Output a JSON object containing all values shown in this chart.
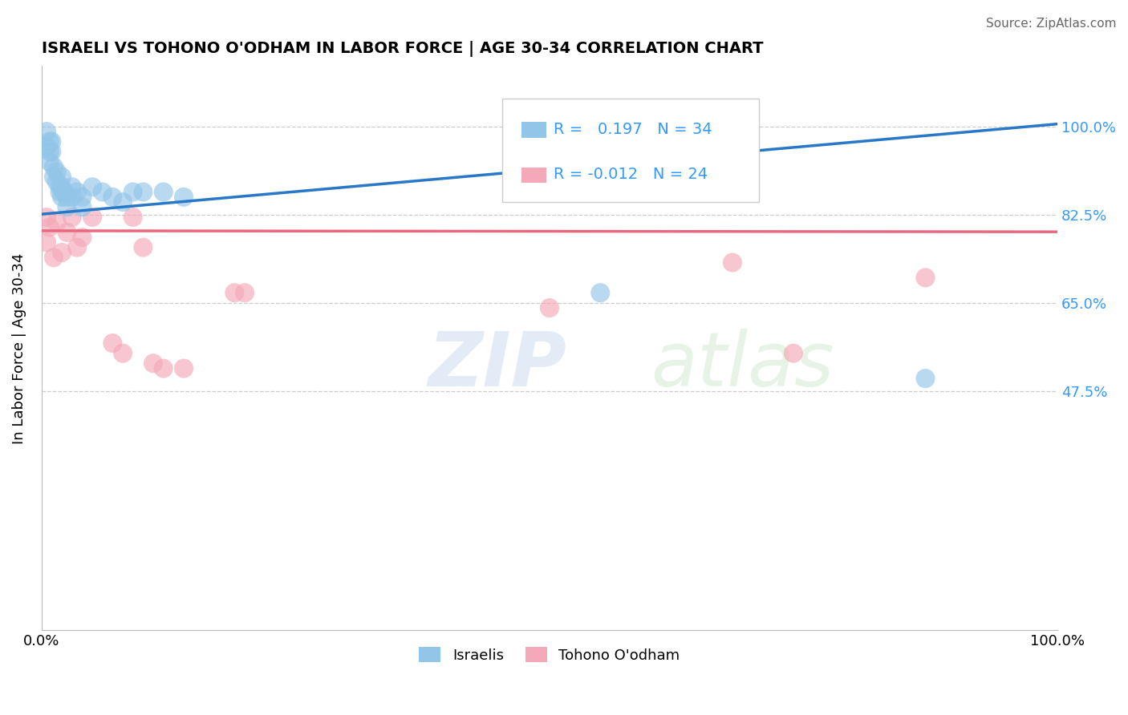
{
  "title": "ISRAELI VS TOHONO O'ODHAM IN LABOR FORCE | AGE 30-34 CORRELATION CHART",
  "source": "Source: ZipAtlas.com",
  "ylabel": "In Labor Force | Age 30-34",
  "xlim": [
    0.0,
    1.0
  ],
  "ylim": [
    0.0,
    1.12
  ],
  "yticks": [
    0.475,
    0.65,
    0.825,
    1.0
  ],
  "ytick_labels": [
    "47.5%",
    "65.0%",
    "82.5%",
    "100.0%"
  ],
  "xtick_labels_left": "0.0%",
  "xtick_labels_right": "100.0%",
  "watermark_zip": "ZIP",
  "watermark_atlas": "atlas",
  "israeli_R": 0.197,
  "israeli_N": 34,
  "tohono_R": -0.012,
  "tohono_N": 24,
  "israeli_color": "#92C5E8",
  "tohono_color": "#F4A8B8",
  "trend_israeli_color": "#2878C8",
  "trend_tohono_color": "#E86880",
  "grid_color": "#CCCCCC",
  "background_color": "#FFFFFF",
  "israeli_points_x": [
    0.005,
    0.005,
    0.008,
    0.008,
    0.008,
    0.01,
    0.01,
    0.012,
    0.012,
    0.015,
    0.015,
    0.018,
    0.018,
    0.02,
    0.02,
    0.02,
    0.022,
    0.025,
    0.025,
    0.03,
    0.03,
    0.035,
    0.04,
    0.04,
    0.05,
    0.06,
    0.07,
    0.08,
    0.09,
    0.1,
    0.12,
    0.14,
    0.55,
    0.87
  ],
  "israeli_points_y": [
    0.99,
    0.96,
    0.97,
    0.95,
    0.93,
    0.97,
    0.95,
    0.92,
    0.9,
    0.91,
    0.89,
    0.88,
    0.87,
    0.9,
    0.88,
    0.86,
    0.87,
    0.86,
    0.84,
    0.88,
    0.86,
    0.87,
    0.86,
    0.84,
    0.88,
    0.87,
    0.86,
    0.85,
    0.87,
    0.87,
    0.87,
    0.86,
    0.67,
    0.5
  ],
  "tohono_points_x": [
    0.005,
    0.005,
    0.008,
    0.012,
    0.015,
    0.02,
    0.025,
    0.03,
    0.035,
    0.04,
    0.05,
    0.07,
    0.08,
    0.09,
    0.1,
    0.11,
    0.12,
    0.14,
    0.19,
    0.2,
    0.5,
    0.68,
    0.74,
    0.87
  ],
  "tohono_points_y": [
    0.82,
    0.77,
    0.8,
    0.74,
    0.81,
    0.75,
    0.79,
    0.82,
    0.76,
    0.78,
    0.82,
    0.57,
    0.55,
    0.82,
    0.76,
    0.53,
    0.52,
    0.52,
    0.67,
    0.67,
    0.64,
    0.73,
    0.55,
    0.7
  ],
  "trend_isr_x0": 0.0,
  "trend_isr_y0": 0.826,
  "trend_isr_x1": 1.0,
  "trend_isr_y1": 1.005,
  "trend_toh_x0": 0.0,
  "trend_toh_y0": 0.793,
  "trend_toh_x1": 1.0,
  "trend_toh_y1": 0.791
}
